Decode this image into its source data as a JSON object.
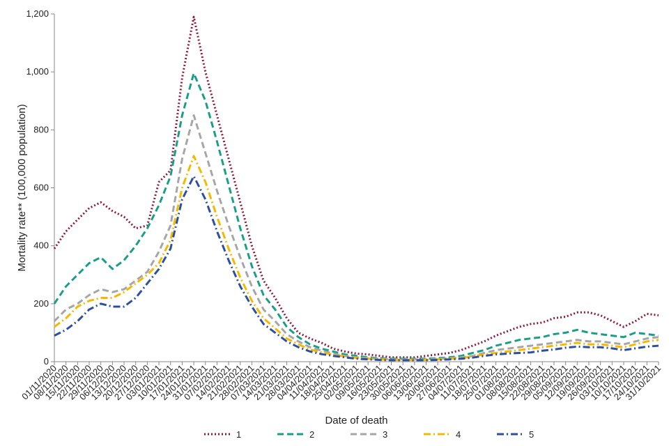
{
  "chart_data": {
    "type": "line",
    "title": "",
    "xlabel": "Date of death",
    "ylabel": "Mortality rate** (100,000 population)",
    "ylim": [
      0,
      1200
    ],
    "yticks": [
      0,
      200,
      400,
      600,
      800,
      1000,
      1200
    ],
    "ytick_labels": [
      "0",
      "200",
      "400",
      "600",
      "800",
      "1,000",
      "1,200"
    ],
    "x_start": "2020-11-01",
    "x_end": "2021-10-31",
    "xtick_labels": [
      "01/11/2020",
      "08/11/2020",
      "15/11/2020",
      "22/11/2020",
      "29/11/2020",
      "06/12/2020",
      "13/12/2020",
      "20/12/2020",
      "27/12/2020",
      "03/01/2021",
      "10/01/2021",
      "17/01/2021",
      "24/01/2021",
      "31/01/2021",
      "07/02/2021",
      "14/02/2021",
      "21/02/2021",
      "28/02/2021",
      "07/03/2021",
      "14/03/2021",
      "21/03/2021",
      "28/03/2021",
      "04/04/2021",
      "11/04/2021",
      "18/04/2021",
      "25/04/2021",
      "02/05/2021",
      "09/05/2021",
      "16/05/2021",
      "23/05/2021",
      "30/05/2021",
      "06/06/2021",
      "13/06/2021",
      "20/06/2021",
      "27/06/2021",
      "04/07/2021",
      "11/07/2021",
      "18/07/2021",
      "25/07/2021",
      "01/08/2021",
      "08/08/2021",
      "15/08/2021",
      "22/08/2021",
      "29/08/2021",
      "05/09/2021",
      "12/09/2021",
      "19/09/2021",
      "26/09/2021",
      "03/10/2021",
      "10/10/2021",
      "17/10/2021",
      "24/10/2021",
      "31/10/2021"
    ],
    "legend_position": "bottom",
    "grid": false,
    "series": [
      {
        "name": "1",
        "color": "#8b1a3c",
        "dash": "dotted",
        "x": [
          "2020-11-01",
          "2020-11-08",
          "2020-11-15",
          "2020-11-22",
          "2020-11-29",
          "2020-12-06",
          "2020-12-13",
          "2020-12-20",
          "2020-12-27",
          "2021-01-03",
          "2021-01-10",
          "2021-01-17",
          "2021-01-24",
          "2021-01-31",
          "2021-02-07",
          "2021-02-14",
          "2021-02-21",
          "2021-02-28",
          "2021-03-07",
          "2021-03-14",
          "2021-03-21",
          "2021-03-28",
          "2021-04-04",
          "2021-04-11",
          "2021-04-18",
          "2021-04-25",
          "2021-05-02",
          "2021-05-09",
          "2021-05-16",
          "2021-05-23",
          "2021-05-30",
          "2021-06-06",
          "2021-06-13",
          "2021-06-20",
          "2021-06-27",
          "2021-07-04",
          "2021-07-11",
          "2021-07-18",
          "2021-07-25",
          "2021-08-01",
          "2021-08-08",
          "2021-08-15",
          "2021-08-22",
          "2021-08-29",
          "2021-09-05",
          "2021-09-12",
          "2021-09-19",
          "2021-09-26",
          "2021-10-03",
          "2021-10-10",
          "2021-10-17",
          "2021-10-24",
          "2021-10-31"
        ],
        "values": [
          390,
          450,
          490,
          530,
          550,
          520,
          500,
          460,
          470,
          620,
          660,
          980,
          1190,
          1000,
          850,
          700,
          550,
          400,
          280,
          220,
          150,
          100,
          80,
          65,
          45,
          35,
          28,
          25,
          20,
          15,
          15,
          15,
          20,
          25,
          30,
          40,
          55,
          70,
          90,
          105,
          120,
          130,
          135,
          150,
          155,
          170,
          170,
          160,
          140,
          120,
          140,
          165,
          160
        ]
      },
      {
        "name": "2",
        "color": "#1a9e86",
        "dash": "dashed",
        "x": [
          "2020-11-01",
          "2020-11-08",
          "2020-11-15",
          "2020-11-22",
          "2020-11-29",
          "2020-12-06",
          "2020-12-13",
          "2020-12-20",
          "2020-12-27",
          "2021-01-03",
          "2021-01-10",
          "2021-01-17",
          "2021-01-24",
          "2021-01-31",
          "2021-02-07",
          "2021-02-14",
          "2021-02-21",
          "2021-02-28",
          "2021-03-07",
          "2021-03-14",
          "2021-03-21",
          "2021-03-28",
          "2021-04-04",
          "2021-04-11",
          "2021-04-18",
          "2021-04-25",
          "2021-05-02",
          "2021-05-09",
          "2021-05-16",
          "2021-05-23",
          "2021-05-30",
          "2021-06-06",
          "2021-06-13",
          "2021-06-20",
          "2021-06-27",
          "2021-07-04",
          "2021-07-11",
          "2021-07-18",
          "2021-07-25",
          "2021-08-01",
          "2021-08-08",
          "2021-08-15",
          "2021-08-22",
          "2021-08-29",
          "2021-09-05",
          "2021-09-12",
          "2021-09-19",
          "2021-09-26",
          "2021-10-03",
          "2021-10-10",
          "2021-10-17",
          "2021-10-24",
          "2021-10-31"
        ],
        "values": [
          200,
          260,
          300,
          340,
          360,
          320,
          350,
          400,
          460,
          540,
          640,
          850,
          995,
          900,
          760,
          610,
          460,
          330,
          230,
          180,
          120,
          85,
          60,
          45,
          35,
          25,
          20,
          15,
          12,
          10,
          10,
          10,
          10,
          12,
          15,
          20,
          30,
          40,
          55,
          65,
          75,
          80,
          85,
          95,
          100,
          110,
          100,
          95,
          90,
          85,
          100,
          95,
          90
        ]
      },
      {
        "name": "3",
        "color": "#a6a6a6",
        "dash": "dashed",
        "x": [
          "2020-11-01",
          "2020-11-08",
          "2020-11-15",
          "2020-11-22",
          "2020-11-29",
          "2020-12-06",
          "2020-12-13",
          "2020-12-20",
          "2020-12-27",
          "2021-01-03",
          "2021-01-10",
          "2021-01-17",
          "2021-01-24",
          "2021-01-31",
          "2021-02-07",
          "2021-02-14",
          "2021-02-21",
          "2021-02-28",
          "2021-03-07",
          "2021-03-14",
          "2021-03-21",
          "2021-03-28",
          "2021-04-04",
          "2021-04-11",
          "2021-04-18",
          "2021-04-25",
          "2021-05-02",
          "2021-05-09",
          "2021-05-16",
          "2021-05-23",
          "2021-05-30",
          "2021-06-06",
          "2021-06-13",
          "2021-06-20",
          "2021-06-27",
          "2021-07-04",
          "2021-07-11",
          "2021-07-18",
          "2021-07-25",
          "2021-08-01",
          "2021-08-08",
          "2021-08-15",
          "2021-08-22",
          "2021-08-29",
          "2021-09-05",
          "2021-09-12",
          "2021-09-19",
          "2021-09-26",
          "2021-10-03",
          "2021-10-10",
          "2021-10-17",
          "2021-10-24",
          "2021-10-31"
        ],
        "values": [
          140,
          180,
          200,
          230,
          250,
          240,
          250,
          280,
          310,
          380,
          470,
          700,
          850,
          720,
          590,
          470,
          360,
          260,
          180,
          140,
          95,
          70,
          50,
          38,
          28,
          20,
          15,
          12,
          10,
          8,
          8,
          8,
          8,
          10,
          12,
          15,
          20,
          30,
          40,
          45,
          50,
          55,
          60,
          65,
          70,
          75,
          70,
          70,
          65,
          60,
          70,
          80,
          85
        ]
      },
      {
        "name": "4",
        "color": "#f5b800",
        "dash": "dashdot",
        "x": [
          "2020-11-01",
          "2020-11-08",
          "2020-11-15",
          "2020-11-22",
          "2020-11-29",
          "2020-12-06",
          "2020-12-13",
          "2020-12-20",
          "2020-12-27",
          "2021-01-03",
          "2021-01-10",
          "2021-01-17",
          "2021-01-24",
          "2021-01-31",
          "2021-02-07",
          "2021-02-14",
          "2021-02-21",
          "2021-02-28",
          "2021-03-07",
          "2021-03-14",
          "2021-03-21",
          "2021-03-28",
          "2021-04-04",
          "2021-04-11",
          "2021-04-18",
          "2021-04-25",
          "2021-05-02",
          "2021-05-09",
          "2021-05-16",
          "2021-05-23",
          "2021-05-30",
          "2021-06-06",
          "2021-06-13",
          "2021-06-20",
          "2021-06-27",
          "2021-07-04",
          "2021-07-11",
          "2021-07-18",
          "2021-07-25",
          "2021-08-01",
          "2021-08-08",
          "2021-08-15",
          "2021-08-22",
          "2021-08-29",
          "2021-09-05",
          "2021-09-12",
          "2021-09-19",
          "2021-09-26",
          "2021-10-03",
          "2021-10-10",
          "2021-10-17",
          "2021-10-24",
          "2021-10-31"
        ],
        "values": [
          120,
          150,
          190,
          210,
          220,
          220,
          240,
          270,
          300,
          340,
          420,
          600,
          710,
          620,
          500,
          390,
          290,
          210,
          150,
          115,
          80,
          60,
          42,
          32,
          24,
          18,
          13,
          10,
          8,
          6,
          6,
          6,
          6,
          8,
          10,
          12,
          18,
          25,
          30,
          35,
          40,
          45,
          50,
          55,
          60,
          65,
          60,
          60,
          55,
          50,
          60,
          70,
          75
        ]
      },
      {
        "name": "5",
        "color": "#2e4f9e",
        "dash": "dashdot",
        "x": [
          "2020-11-01",
          "2020-11-08",
          "2020-11-15",
          "2020-11-22",
          "2020-11-29",
          "2020-12-06",
          "2020-12-13",
          "2020-12-20",
          "2020-12-27",
          "2021-01-03",
          "2021-01-10",
          "2021-01-17",
          "2021-01-24",
          "2021-01-31",
          "2021-02-07",
          "2021-02-14",
          "2021-02-21",
          "2021-02-28",
          "2021-03-07",
          "2021-03-14",
          "2021-03-21",
          "2021-03-28",
          "2021-04-04",
          "2021-04-11",
          "2021-04-18",
          "2021-04-25",
          "2021-05-02",
          "2021-05-09",
          "2021-05-16",
          "2021-05-23",
          "2021-05-30",
          "2021-06-06",
          "2021-06-13",
          "2021-06-20",
          "2021-06-27",
          "2021-07-04",
          "2021-07-11",
          "2021-07-18",
          "2021-07-25",
          "2021-08-01",
          "2021-08-08",
          "2021-08-15",
          "2021-08-22",
          "2021-08-29",
          "2021-09-05",
          "2021-09-12",
          "2021-09-19",
          "2021-09-26",
          "2021-10-03",
          "2021-10-10",
          "2021-10-17",
          "2021-10-24",
          "2021-10-31"
        ],
        "values": [
          90,
          110,
          140,
          180,
          200,
          190,
          190,
          220,
          270,
          320,
          390,
          560,
          640,
          560,
          450,
          350,
          260,
          190,
          130,
          100,
          70,
          50,
          35,
          26,
          20,
          15,
          10,
          8,
          6,
          5,
          5,
          5,
          5,
          6,
          8,
          10,
          14,
          20,
          25,
          28,
          30,
          32,
          38,
          42,
          48,
          52,
          50,
          50,
          46,
          40,
          46,
          52,
          55
        ]
      }
    ]
  }
}
